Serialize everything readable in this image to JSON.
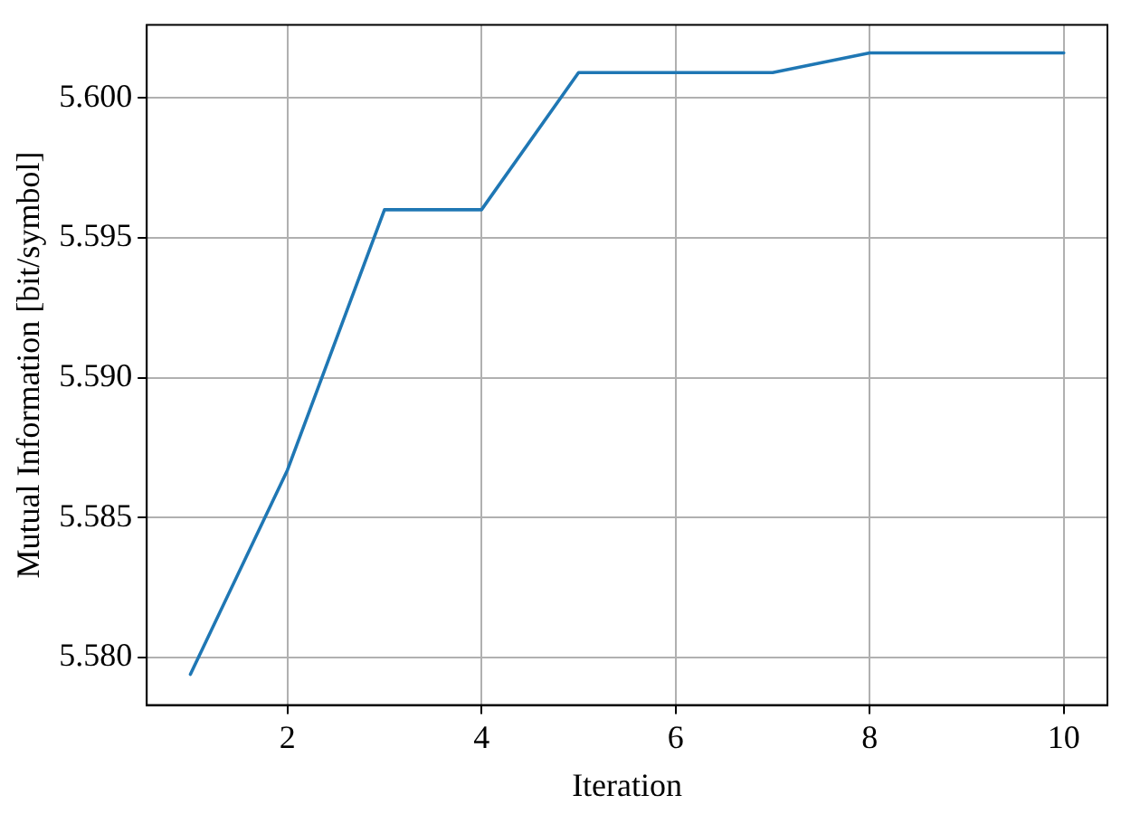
{
  "chart_data": {
    "type": "line",
    "xlabel": "Iteration",
    "ylabel": "Mutual Information [bit/symbol]",
    "x": [
      1,
      2,
      3,
      4,
      5,
      6,
      7,
      8,
      9,
      10
    ],
    "series": [
      {
        "color": "#1f77b4",
        "values": [
          5.5794,
          5.5867,
          5.596,
          5.596,
          5.6009,
          5.6009,
          5.6009,
          5.6016,
          5.6016,
          5.6016
        ]
      }
    ],
    "xlim": [
      0.55,
      10.45
    ],
    "ylim": [
      5.5783,
      5.6026
    ],
    "xticks": [
      2,
      4,
      6,
      8,
      10
    ],
    "yticks": [
      {
        "value": 5.58,
        "label": "5.580"
      },
      {
        "value": 5.585,
        "label": "5.585"
      },
      {
        "value": 5.59,
        "label": "5.590"
      },
      {
        "value": 5.595,
        "label": "5.595"
      },
      {
        "value": 5.6,
        "label": "5.600"
      }
    ],
    "grid": true,
    "legend": false,
    "marker": "none",
    "line_style": "solid"
  }
}
